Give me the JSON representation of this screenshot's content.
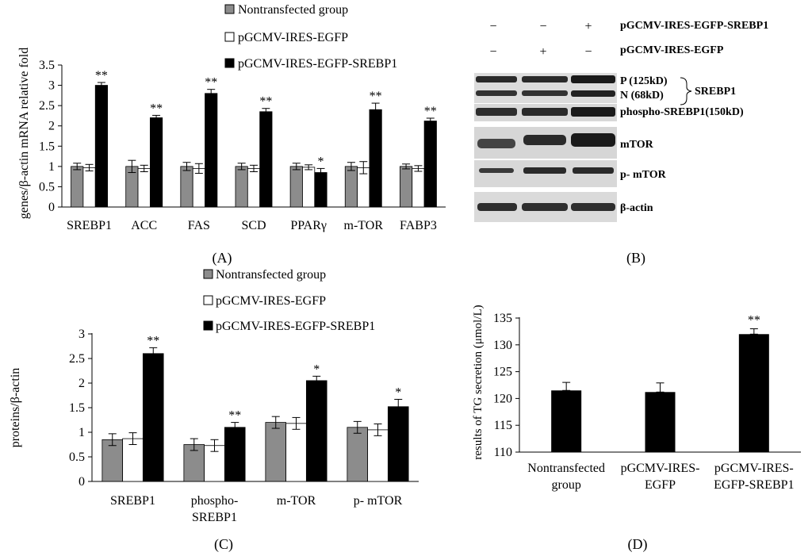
{
  "colors": {
    "nontransfected": "#8c8c8c",
    "egfp": "#ffffff",
    "srebp1": "#000000"
  },
  "legend": [
    "Nontransfected group",
    "pGCMV-IRES-EGFP",
    "pGCMV-IRES-EGFP-SREBP1"
  ],
  "chart_data": [
    {
      "id": "A",
      "panel_label": "(A)",
      "type": "bar",
      "ylabel": "genes/β-actin mRNA relative fold",
      "ylim": [
        0,
        3.5
      ],
      "yticks": [
        "0",
        "0.5",
        "1",
        "1.5",
        "2",
        "2.5",
        "3",
        "3.5"
      ],
      "categories": [
        "SREBP1",
        "ACC",
        "FAS",
        "SCD",
        "PPARγ",
        "m-TOR",
        "FABP3"
      ],
      "series": [
        {
          "name": "Nontransfected group",
          "values": [
            1,
            1,
            1,
            1,
            1,
            1,
            1
          ],
          "errors": [
            0.08,
            0.15,
            0.1,
            0.08,
            0.08,
            0.1,
            0.06
          ]
        },
        {
          "name": "pGCMV-IRES-EGFP",
          "values": [
            0.97,
            0.95,
            0.95,
            0.95,
            0.98,
            0.97,
            0.95
          ],
          "errors": [
            0.08,
            0.08,
            0.12,
            0.08,
            0.06,
            0.15,
            0.07
          ]
        },
        {
          "name": "pGCMV-IRES-EGFP-SREBP1",
          "values": [
            3.0,
            2.2,
            2.8,
            2.35,
            0.85,
            2.4,
            2.12
          ],
          "errors": [
            0.07,
            0.06,
            0.1,
            0.08,
            0.1,
            0.16,
            0.07
          ]
        }
      ],
      "annotations": [
        "**",
        "**",
        "**",
        "**",
        "*",
        "**",
        "**"
      ]
    },
    {
      "id": "C",
      "panel_label": "(C)",
      "type": "bar",
      "ylabel": "proteins/β-actin",
      "ylim": [
        0,
        3
      ],
      "yticks": [
        "0",
        "0.5",
        "1",
        "1.5",
        "2",
        "2.5",
        "3"
      ],
      "categories": [
        [
          "SREBP1"
        ],
        [
          "phospho-",
          "SREBP1"
        ],
        [
          "m-TOR"
        ],
        [
          "p- mTOR"
        ]
      ],
      "series": [
        {
          "name": "Nontransfected group",
          "values": [
            0.85,
            0.75,
            1.2,
            1.1
          ],
          "errors": [
            0.12,
            0.12,
            0.12,
            0.12
          ]
        },
        {
          "name": "pGCMV-IRES-EGFP",
          "values": [
            0.87,
            0.73,
            1.18,
            1.05
          ],
          "errors": [
            0.12,
            0.12,
            0.12,
            0.12
          ]
        },
        {
          "name": "pGCMV-IRES-EGFP-SREBP1",
          "values": [
            2.6,
            1.1,
            2.05,
            1.52
          ],
          "errors": [
            0.12,
            0.1,
            0.09,
            0.15
          ]
        }
      ],
      "annotations": [
        "**",
        "**",
        "*",
        "*"
      ]
    },
    {
      "id": "D",
      "panel_label": "(D)",
      "type": "bar",
      "ylabel": "results of TG secretion (μmol/L)",
      "ylim": [
        110,
        135
      ],
      "yticks": [
        "110",
        "115",
        "120",
        "125",
        "130",
        "135"
      ],
      "categories": [
        [
          "Nontransfected",
          "group"
        ],
        [
          "pGCMV-IRES-",
          "EGFP"
        ],
        [
          "pGCMV-IRES-",
          "EGFP-SREBP1"
        ]
      ],
      "values": [
        121.5,
        121.2,
        132
      ],
      "errors": [
        1.5,
        1.7,
        1.0
      ],
      "annotations": [
        "",
        "",
        "**"
      ]
    }
  ],
  "blot": {
    "panel_label": "(B)",
    "header_rows": [
      {
        "signs": [
          "−",
          "−",
          "+"
        ],
        "label": "pGCMV-IRES-EGFP-SREBP1"
      },
      {
        "signs": [
          "−",
          "+",
          "−"
        ],
        "label": "pGCMV-IRES-EGFP"
      }
    ],
    "p_label": "P (125kD)",
    "n_label": "N (68kD)",
    "brace_label": "SREBP1",
    "strip_labels": [
      "phospho-SREBP1(150kD)",
      "mTOR",
      "p- mTOR",
      "β-actin"
    ]
  }
}
